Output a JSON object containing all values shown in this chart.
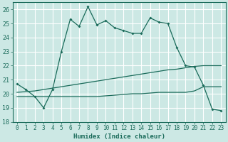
{
  "xlabel": "Humidex (Indice chaleur)",
  "ylabel": "",
  "bg_color": "#cce8e4",
  "grid_color": "#ffffff",
  "line_color": "#1a6b5a",
  "xlim": [
    -0.5,
    23.5
  ],
  "ylim": [
    18.0,
    26.5
  ],
  "yticks": [
    18,
    19,
    20,
    21,
    22,
    23,
    24,
    25,
    26
  ],
  "xticks": [
    0,
    1,
    2,
    3,
    4,
    5,
    6,
    7,
    8,
    9,
    10,
    11,
    12,
    13,
    14,
    15,
    16,
    17,
    18,
    19,
    20,
    21,
    22,
    23
  ],
  "line1_x": [
    0,
    1,
    2,
    3,
    4,
    5,
    6,
    7,
    8,
    9,
    10,
    11,
    12,
    13,
    14,
    15,
    16,
    17,
    18,
    19,
    20,
    21,
    22,
    23
  ],
  "line1_y": [
    20.7,
    20.3,
    19.8,
    19.0,
    20.3,
    23.0,
    25.3,
    24.8,
    26.2,
    24.9,
    25.2,
    24.7,
    24.5,
    24.3,
    24.3,
    25.4,
    25.1,
    25.0,
    23.3,
    22.0,
    21.9,
    20.6,
    18.9,
    18.8
  ],
  "line2_x": [
    0,
    1,
    2,
    3,
    4,
    5,
    6,
    7,
    8,
    9,
    10,
    11,
    12,
    13,
    14,
    15,
    16,
    17,
    18,
    19,
    20,
    21,
    22,
    23
  ],
  "line2_y": [
    20.1,
    20.15,
    20.2,
    20.3,
    20.4,
    20.5,
    20.6,
    20.7,
    20.8,
    20.9,
    21.0,
    21.1,
    21.2,
    21.3,
    21.4,
    21.5,
    21.6,
    21.7,
    21.75,
    21.85,
    21.95,
    22.0,
    22.0,
    22.0
  ],
  "line3_x": [
    0,
    1,
    2,
    3,
    4,
    5,
    6,
    7,
    8,
    9,
    10,
    11,
    12,
    13,
    14,
    15,
    16,
    17,
    18,
    19,
    20,
    21,
    22,
    23
  ],
  "line3_y": [
    19.8,
    19.8,
    19.8,
    19.8,
    19.8,
    19.8,
    19.8,
    19.8,
    19.8,
    19.8,
    19.85,
    19.9,
    19.95,
    20.0,
    20.0,
    20.05,
    20.1,
    20.1,
    20.1,
    20.1,
    20.2,
    20.5,
    20.5,
    20.5
  ]
}
